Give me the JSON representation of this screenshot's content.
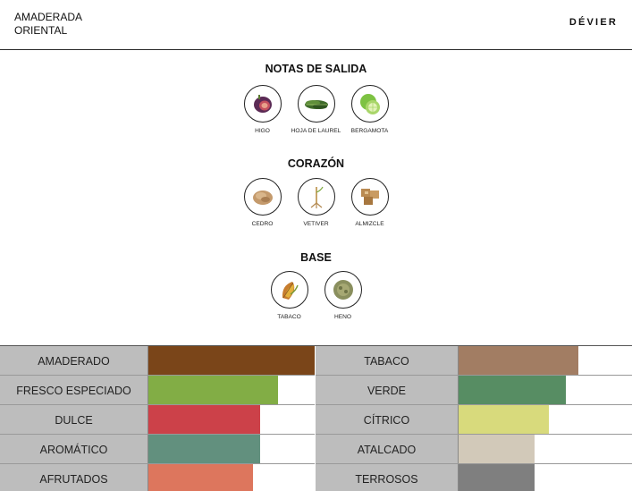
{
  "header": {
    "family_line1": "AMADERADA",
    "family_line2": "ORIENTAL",
    "brand": "DÉVIER"
  },
  "pyramid": {
    "top": {
      "title": "NOTAS DE SALIDA",
      "notes": [
        {
          "name": "HIGO",
          "icon": "fig-icon"
        },
        {
          "name": "HOJA DE LAUREL",
          "icon": "bay-leaf-icon"
        },
        {
          "name": "BERGAMOTA",
          "icon": "bergamot-icon"
        }
      ]
    },
    "heart": {
      "title": "CORAZÓN",
      "notes": [
        {
          "name": "CEDRO",
          "icon": "cedar-icon"
        },
        {
          "name": "VETIVER",
          "icon": "vetiver-icon"
        },
        {
          "name": "ALMIZCLE",
          "icon": "musk-icon"
        }
      ]
    },
    "base": {
      "title": "BASE",
      "notes": [
        {
          "name": "TABACO",
          "icon": "tobacco-icon"
        },
        {
          "name": "HENO",
          "icon": "hay-icon"
        }
      ]
    }
  },
  "accords": {
    "left": [
      {
        "label": "AMADERADO",
        "level": 1.0,
        "color": "#7a4519"
      },
      {
        "label": "FRESCO ESPECIADO",
        "level": 0.78,
        "color": "#82ad45"
      },
      {
        "label": "DULCE",
        "level": 0.67,
        "color": "#cc4149"
      },
      {
        "label": "AROMÁTICO",
        "level": 0.67,
        "color": "#62907e"
      },
      {
        "label": "AFRUTADOS",
        "level": 0.63,
        "color": "#dd765d"
      }
    ],
    "right": [
      {
        "label": "TABACO",
        "level": 0.69,
        "color": "#a27d63"
      },
      {
        "label": "VERDE",
        "level": 0.62,
        "color": "#578d63"
      },
      {
        "label": "CÍTRICO",
        "level": 0.52,
        "color": "#d8da7c"
      },
      {
        "label": "ATALCADO",
        "level": 0.44,
        "color": "#d2c9b9"
      },
      {
        "label": "TERROSOS",
        "level": 0.44,
        "color": "#7f7f7f"
      }
    ]
  }
}
